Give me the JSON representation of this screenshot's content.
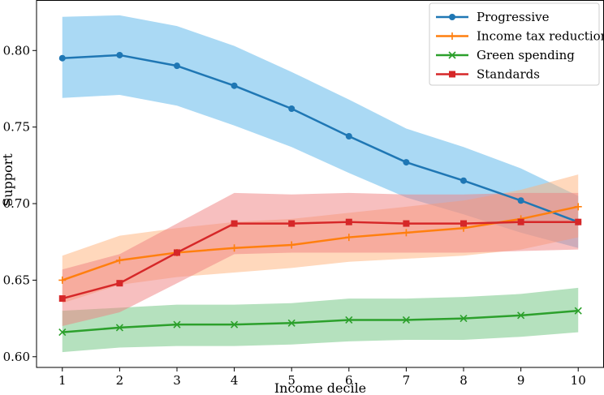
{
  "chart_data": {
    "type": "line",
    "xlabel": "Income decile",
    "ylabel": "Support",
    "xlim": [
      0.55,
      10.45
    ],
    "ylim": [
      0.593,
      0.833
    ],
    "x": [
      1,
      2,
      3,
      4,
      5,
      6,
      7,
      8,
      9,
      10
    ],
    "x_ticks": [
      "1",
      "2",
      "3",
      "4",
      "5",
      "6",
      "7",
      "8",
      "9",
      "10"
    ],
    "y_ticks": [
      "0.60",
      "0.65",
      "0.70",
      "0.75",
      "0.80"
    ],
    "y_tick_values": [
      0.6,
      0.65,
      0.7,
      0.75,
      0.8
    ],
    "grid": false,
    "legend_position": "top-right",
    "series": [
      {
        "name": "Progressive",
        "color": "#1f77b4",
        "band_color": "#56b4e9",
        "marker": "circle",
        "values": [
          0.795,
          0.797,
          0.79,
          0.777,
          0.762,
          0.744,
          0.727,
          0.715,
          0.702,
          0.688
        ],
        "lower": [
          0.769,
          0.771,
          0.764,
          0.751,
          0.737,
          0.72,
          0.704,
          0.693,
          0.681,
          0.671
        ],
        "upper": [
          0.822,
          0.823,
          0.816,
          0.803,
          0.786,
          0.768,
          0.749,
          0.737,
          0.723,
          0.705
        ]
      },
      {
        "name": "Income tax reduction",
        "color": "#ff7f0e",
        "band_color": "#ffb27a",
        "marker": "plus",
        "values": [
          0.65,
          0.663,
          0.668,
          0.671,
          0.673,
          0.678,
          0.681,
          0.684,
          0.69,
          0.698
        ],
        "lower": [
          0.635,
          0.647,
          0.652,
          0.655,
          0.658,
          0.662,
          0.664,
          0.666,
          0.67,
          0.678
        ],
        "upper": [
          0.666,
          0.679,
          0.684,
          0.688,
          0.69,
          0.694,
          0.698,
          0.702,
          0.709,
          0.719
        ]
      },
      {
        "name": "Green spending",
        "color": "#2ca02c",
        "band_color": "#6cc47e",
        "marker": "x",
        "values": [
          0.616,
          0.619,
          0.621,
          0.621,
          0.622,
          0.624,
          0.624,
          0.625,
          0.627,
          0.63
        ],
        "lower": [
          0.603,
          0.606,
          0.607,
          0.607,
          0.608,
          0.61,
          0.611,
          0.611,
          0.613,
          0.616
        ],
        "upper": [
          0.63,
          0.632,
          0.634,
          0.634,
          0.635,
          0.638,
          0.638,
          0.639,
          0.641,
          0.645
        ]
      },
      {
        "name": "Standards",
        "color": "#d62728",
        "band_color": "#f08080",
        "marker": "square",
        "values": [
          0.638,
          0.648,
          0.668,
          0.687,
          0.687,
          0.688,
          0.687,
          0.687,
          0.688,
          0.688
        ],
        "lower": [
          0.62,
          0.629,
          0.648,
          0.667,
          0.668,
          0.668,
          0.668,
          0.668,
          0.669,
          0.67
        ],
        "upper": [
          0.657,
          0.667,
          0.687,
          0.707,
          0.706,
          0.707,
          0.706,
          0.706,
          0.707,
          0.707
        ]
      }
    ]
  }
}
